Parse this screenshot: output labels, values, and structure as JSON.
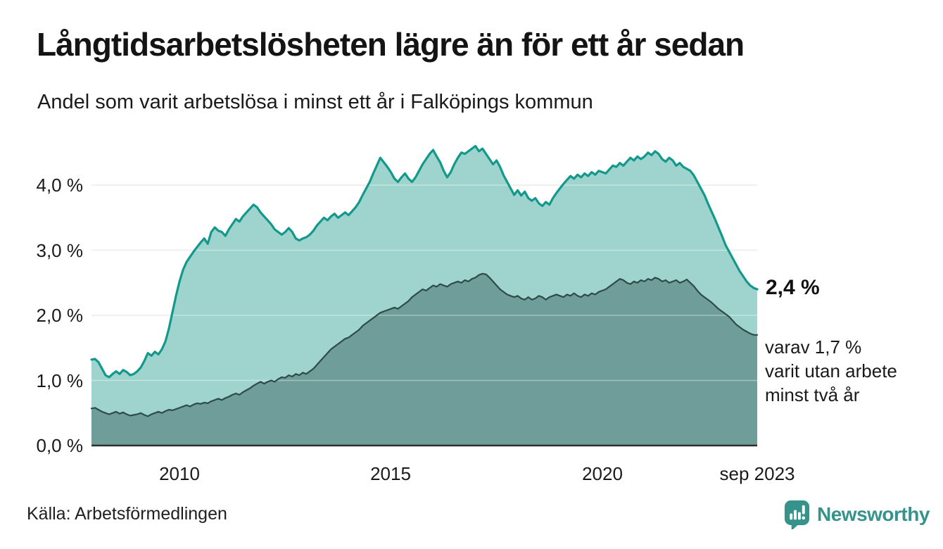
{
  "title": "Långtidsarbetslösheten lägre än för ett år sedan",
  "subtitle": "Andel som varit arbetslösa i minst ett år i Falköpings kommun",
  "source": "Källa: Arbetsförmedlingen",
  "branding": {
    "name": "Newsworthy",
    "color": "#35938b",
    "icon": "newsworthy-speech-bubble-bar-chart-icon"
  },
  "chart_data": {
    "type": "area",
    "title": "Långtidsarbetslösheten lägre än för ett år sedan",
    "subtitle": "Andel som varit arbetslösa i minst ett år i Falköpings kommun",
    "xlabel": "",
    "ylabel": "",
    "grid": true,
    "legend_position": "none",
    "unit": "%",
    "frequency": "monthly",
    "x_start": "2007-12",
    "x_end": "2023-09",
    "xlim": [
      2007.917,
      2023.667
    ],
    "ylim": [
      0,
      4.75
    ],
    "grid_color": "#e3e3e3",
    "axis_line_color": "#2f2f2f",
    "y_ticks": [
      {
        "value": 0,
        "label": "0,0 %"
      },
      {
        "value": 1,
        "label": "1,0 %"
      },
      {
        "value": 2,
        "label": "2,0 %"
      },
      {
        "value": 3,
        "label": "3,0 %"
      },
      {
        "value": 4,
        "label": "4,0 %"
      }
    ],
    "x_ticks": [
      {
        "value": 2010,
        "label": "2010"
      },
      {
        "value": 2015,
        "label": "2015"
      },
      {
        "value": 2020,
        "label": "2020"
      },
      {
        "value": 2023.667,
        "label": "sep 2023"
      }
    ],
    "annotations": {
      "end_value_label": "2,4 %",
      "sub_lines": [
        "varav 1,7 %",
        "varit utan arbete",
        "minst två år"
      ]
    },
    "series": [
      {
        "name": "Arbetslösa i minst ett år",
        "fill": "#9ed4cd",
        "line": "#12998b",
        "line_width": 3.2,
        "end_value": 2.4,
        "values": [
          1.32,
          1.33,
          1.28,
          1.18,
          1.08,
          1.05,
          1.1,
          1.14,
          1.1,
          1.16,
          1.13,
          1.08,
          1.1,
          1.14,
          1.2,
          1.3,
          1.42,
          1.38,
          1.44,
          1.4,
          1.48,
          1.6,
          1.8,
          2.05,
          2.3,
          2.52,
          2.7,
          2.82,
          2.9,
          2.98,
          3.05,
          3.12,
          3.18,
          3.1,
          3.28,
          3.35,
          3.3,
          3.28,
          3.22,
          3.32,
          3.4,
          3.48,
          3.44,
          3.52,
          3.58,
          3.64,
          3.7,
          3.66,
          3.58,
          3.52,
          3.46,
          3.4,
          3.32,
          3.28,
          3.24,
          3.28,
          3.34,
          3.28,
          3.18,
          3.15,
          3.18,
          3.2,
          3.24,
          3.3,
          3.38,
          3.44,
          3.5,
          3.46,
          3.52,
          3.56,
          3.5,
          3.54,
          3.58,
          3.54,
          3.6,
          3.66,
          3.74,
          3.85,
          3.95,
          4.05,
          4.18,
          4.3,
          4.42,
          4.35,
          4.28,
          4.2,
          4.1,
          4.05,
          4.12,
          4.18,
          4.1,
          4.05,
          4.12,
          4.22,
          4.32,
          4.4,
          4.48,
          4.54,
          4.44,
          4.35,
          4.22,
          4.12,
          4.2,
          4.32,
          4.42,
          4.5,
          4.48,
          4.52,
          4.56,
          4.6,
          4.52,
          4.56,
          4.48,
          4.4,
          4.32,
          4.38,
          4.28,
          4.15,
          4.05,
          3.95,
          3.85,
          3.92,
          3.84,
          3.9,
          3.8,
          3.76,
          3.8,
          3.72,
          3.68,
          3.74,
          3.7,
          3.8,
          3.88,
          3.95,
          4.02,
          4.08,
          4.14,
          4.1,
          4.16,
          4.12,
          4.18,
          4.14,
          4.2,
          4.16,
          4.22,
          4.2,
          4.18,
          4.24,
          4.3,
          4.28,
          4.34,
          4.3,
          4.36,
          4.42,
          4.38,
          4.44,
          4.4,
          4.44,
          4.5,
          4.46,
          4.52,
          4.48,
          4.4,
          4.36,
          4.42,
          4.38,
          4.3,
          4.34,
          4.28,
          4.25,
          4.22,
          4.15,
          4.05,
          3.95,
          3.85,
          3.72,
          3.6,
          3.48,
          3.35,
          3.22,
          3.08,
          2.98,
          2.88,
          2.78,
          2.68,
          2.6,
          2.52,
          2.46,
          2.42,
          2.4
        ]
      },
      {
        "name": "Varit utan arbete minst två år",
        "fill": "#6f9d99",
        "line": "#2e4b48",
        "line_width": 2.2,
        "end_value": 1.7,
        "values": [
          0.57,
          0.58,
          0.55,
          0.52,
          0.5,
          0.48,
          0.5,
          0.52,
          0.49,
          0.51,
          0.48,
          0.46,
          0.47,
          0.48,
          0.5,
          0.47,
          0.45,
          0.48,
          0.5,
          0.52,
          0.5,
          0.53,
          0.55,
          0.54,
          0.56,
          0.58,
          0.6,
          0.62,
          0.6,
          0.63,
          0.65,
          0.64,
          0.66,
          0.65,
          0.68,
          0.7,
          0.72,
          0.7,
          0.73,
          0.75,
          0.78,
          0.8,
          0.78,
          0.82,
          0.85,
          0.88,
          0.92,
          0.95,
          0.98,
          0.95,
          0.98,
          1.0,
          0.98,
          1.02,
          1.05,
          1.04,
          1.08,
          1.06,
          1.1,
          1.08,
          1.12,
          1.1,
          1.14,
          1.18,
          1.24,
          1.3,
          1.36,
          1.42,
          1.48,
          1.52,
          1.56,
          1.6,
          1.64,
          1.66,
          1.7,
          1.74,
          1.78,
          1.84,
          1.88,
          1.92,
          1.96,
          2.0,
          2.04,
          2.06,
          2.08,
          2.1,
          2.12,
          2.1,
          2.14,
          2.18,
          2.22,
          2.28,
          2.32,
          2.36,
          2.4,
          2.38,
          2.42,
          2.46,
          2.44,
          2.48,
          2.46,
          2.44,
          2.48,
          2.5,
          2.52,
          2.5,
          2.54,
          2.52,
          2.56,
          2.58,
          2.62,
          2.64,
          2.63,
          2.58,
          2.52,
          2.46,
          2.4,
          2.36,
          2.32,
          2.3,
          2.28,
          2.3,
          2.26,
          2.24,
          2.28,
          2.24,
          2.26,
          2.3,
          2.28,
          2.24,
          2.28,
          2.3,
          2.32,
          2.3,
          2.28,
          2.32,
          2.3,
          2.34,
          2.3,
          2.28,
          2.32,
          2.3,
          2.34,
          2.32,
          2.36,
          2.38,
          2.4,
          2.44,
          2.48,
          2.52,
          2.56,
          2.54,
          2.5,
          2.48,
          2.52,
          2.5,
          2.54,
          2.52,
          2.56,
          2.54,
          2.58,
          2.56,
          2.52,
          2.54,
          2.5,
          2.52,
          2.54,
          2.5,
          2.52,
          2.55,
          2.5,
          2.45,
          2.38,
          2.32,
          2.28,
          2.24,
          2.2,
          2.15,
          2.1,
          2.06,
          2.02,
          1.98,
          1.92,
          1.86,
          1.82,
          1.78,
          1.75,
          1.72,
          1.7,
          1.7
        ]
      }
    ]
  }
}
